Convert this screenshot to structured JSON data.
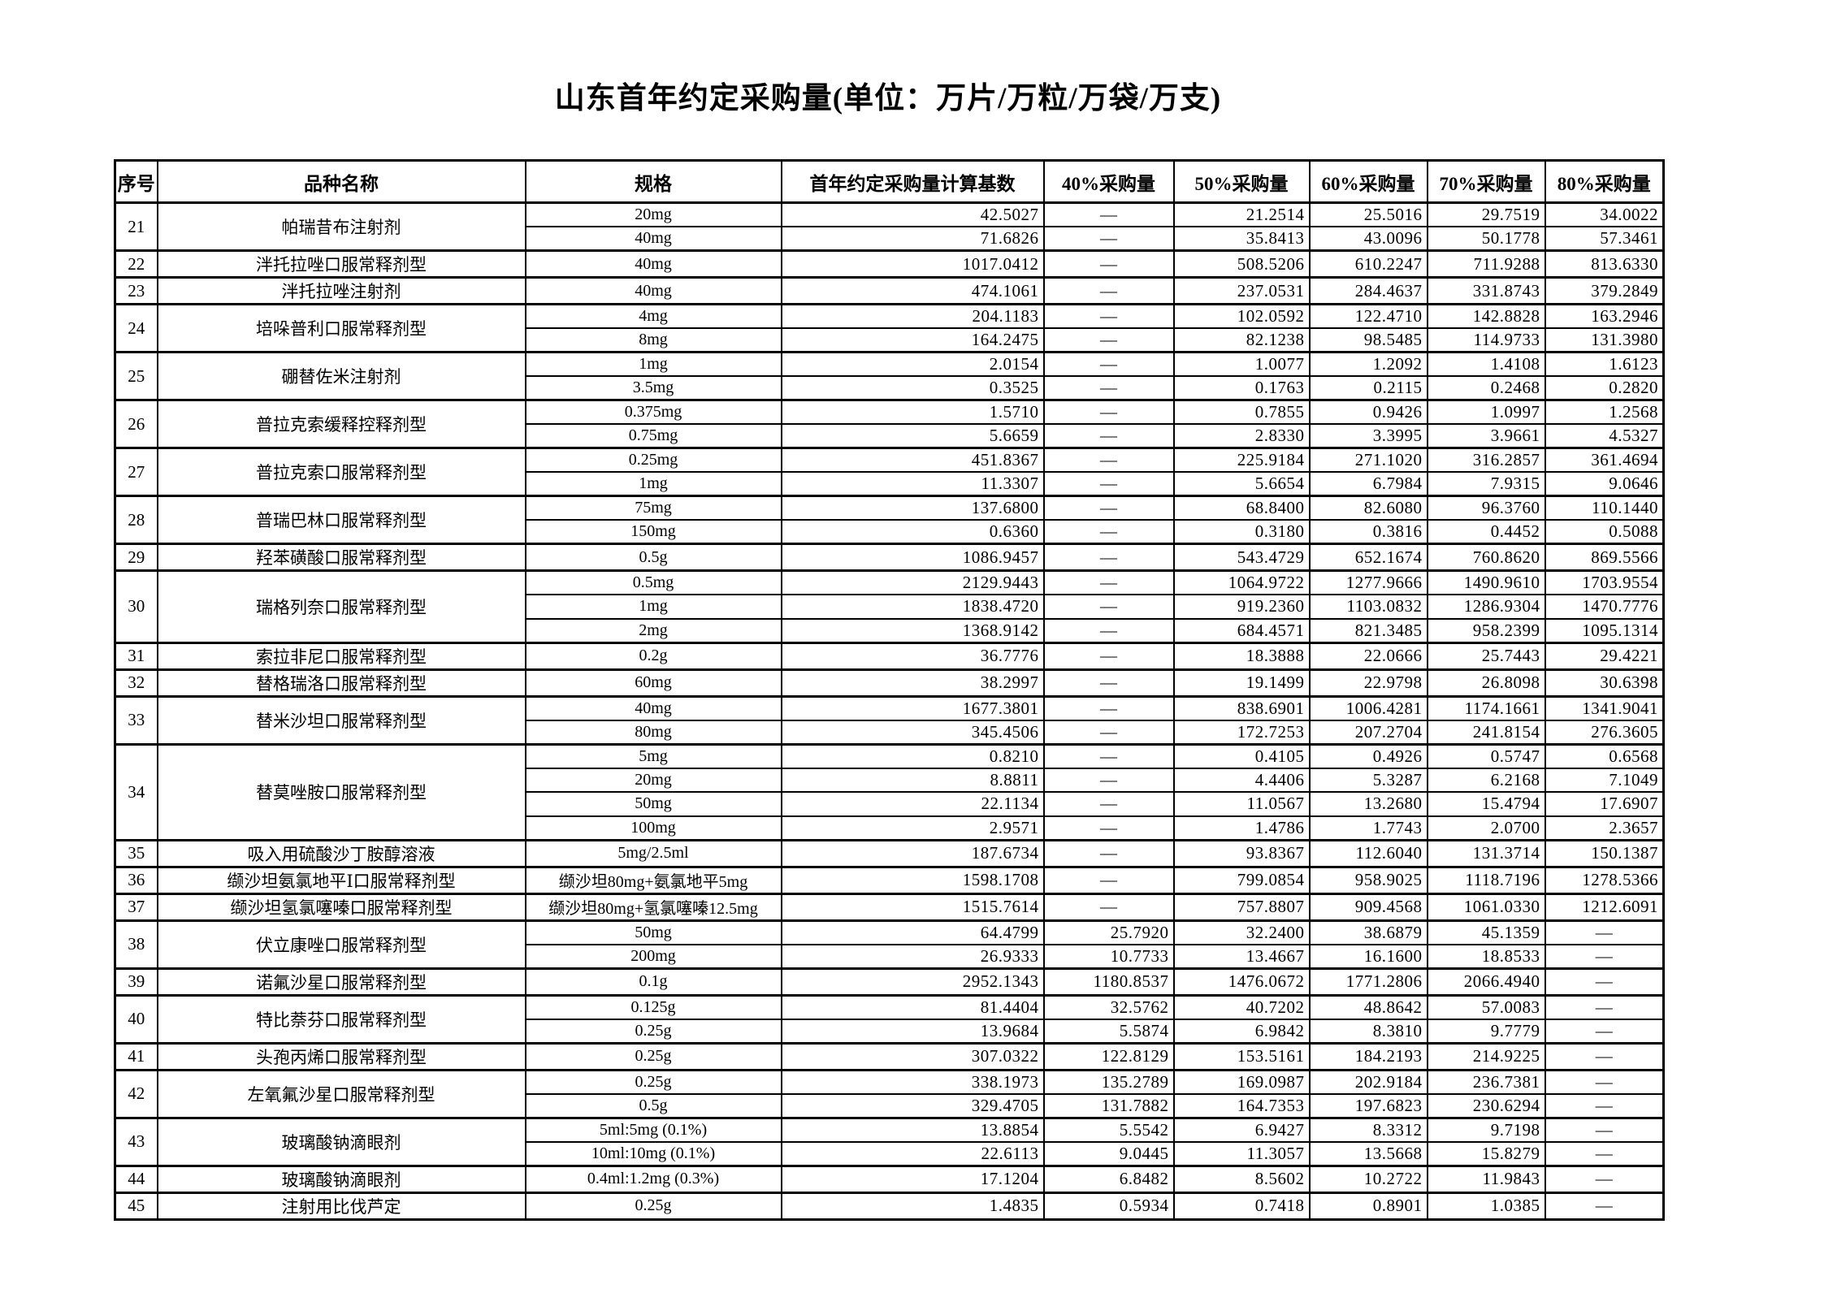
{
  "title": "山东首年约定采购量(单位：万片/万粒/万袋/万支)",
  "table": {
    "headers": [
      "序号",
      "品种名称",
      "规格",
      "首年约定采购量计算基数",
      "40%采购量",
      "50%采购量",
      "60%采购量",
      "70%采购量",
      "80%采购量"
    ],
    "dash_symbol": "—",
    "groups": [
      {
        "no": "21",
        "name": "帕瑞昔布注射剂",
        "rows": [
          {
            "spec": "20mg",
            "base": "42.5027",
            "p40": "—",
            "p50": "21.2514",
            "p60": "25.5016",
            "p70": "29.7519",
            "p80": "34.0022"
          },
          {
            "spec": "40mg",
            "base": "71.6826",
            "p40": "—",
            "p50": "35.8413",
            "p60": "43.0096",
            "p70": "50.1778",
            "p80": "57.3461"
          }
        ]
      },
      {
        "no": "22",
        "name": "泮托拉唑口服常释剂型",
        "rows": [
          {
            "spec": "40mg",
            "base": "1017.0412",
            "p40": "—",
            "p50": "508.5206",
            "p60": "610.2247",
            "p70": "711.9288",
            "p80": "813.6330"
          }
        ]
      },
      {
        "no": "23",
        "name": "泮托拉唑注射剂",
        "rows": [
          {
            "spec": "40mg",
            "base": "474.1061",
            "p40": "—",
            "p50": "237.0531",
            "p60": "284.4637",
            "p70": "331.8743",
            "p80": "379.2849"
          }
        ]
      },
      {
        "no": "24",
        "name": "培哚普利口服常释剂型",
        "rows": [
          {
            "spec": "4mg",
            "base": "204.1183",
            "p40": "—",
            "p50": "102.0592",
            "p60": "122.4710",
            "p70": "142.8828",
            "p80": "163.2946"
          },
          {
            "spec": "8mg",
            "base": "164.2475",
            "p40": "—",
            "p50": "82.1238",
            "p60": "98.5485",
            "p70": "114.9733",
            "p80": "131.3980"
          }
        ]
      },
      {
        "no": "25",
        "name": "硼替佐米注射剂",
        "rows": [
          {
            "spec": "1mg",
            "base": "2.0154",
            "p40": "—",
            "p50": "1.0077",
            "p60": "1.2092",
            "p70": "1.4108",
            "p80": "1.6123"
          },
          {
            "spec": "3.5mg",
            "base": "0.3525",
            "p40": "—",
            "p50": "0.1763",
            "p60": "0.2115",
            "p70": "0.2468",
            "p80": "0.2820"
          }
        ]
      },
      {
        "no": "26",
        "name": "普拉克索缓释控释剂型",
        "rows": [
          {
            "spec": "0.375mg",
            "base": "1.5710",
            "p40": "—",
            "p50": "0.7855",
            "p60": "0.9426",
            "p70": "1.0997",
            "p80": "1.2568"
          },
          {
            "spec": "0.75mg",
            "base": "5.6659",
            "p40": "—",
            "p50": "2.8330",
            "p60": "3.3995",
            "p70": "3.9661",
            "p80": "4.5327"
          }
        ]
      },
      {
        "no": "27",
        "name": "普拉克索口服常释剂型",
        "rows": [
          {
            "spec": "0.25mg",
            "base": "451.8367",
            "p40": "—",
            "p50": "225.9184",
            "p60": "271.1020",
            "p70": "316.2857",
            "p80": "361.4694"
          },
          {
            "spec": "1mg",
            "base": "11.3307",
            "p40": "—",
            "p50": "5.6654",
            "p60": "6.7984",
            "p70": "7.9315",
            "p80": "9.0646"
          }
        ]
      },
      {
        "no": "28",
        "name": "普瑞巴林口服常释剂型",
        "rows": [
          {
            "spec": "75mg",
            "base": "137.6800",
            "p40": "—",
            "p50": "68.8400",
            "p60": "82.6080",
            "p70": "96.3760",
            "p80": "110.1440"
          },
          {
            "spec": "150mg",
            "base": "0.6360",
            "p40": "—",
            "p50": "0.3180",
            "p60": "0.3816",
            "p70": "0.4452",
            "p80": "0.5088"
          }
        ]
      },
      {
        "no": "29",
        "name": "羟苯磺酸口服常释剂型",
        "rows": [
          {
            "spec": "0.5g",
            "base": "1086.9457",
            "p40": "—",
            "p50": "543.4729",
            "p60": "652.1674",
            "p70": "760.8620",
            "p80": "869.5566"
          }
        ]
      },
      {
        "no": "30",
        "name": "瑞格列奈口服常释剂型",
        "rows": [
          {
            "spec": "0.5mg",
            "base": "2129.9443",
            "p40": "—",
            "p50": "1064.9722",
            "p60": "1277.9666",
            "p70": "1490.9610",
            "p80": "1703.9554"
          },
          {
            "spec": "1mg",
            "base": "1838.4720",
            "p40": "—",
            "p50": "919.2360",
            "p60": "1103.0832",
            "p70": "1286.9304",
            "p80": "1470.7776"
          },
          {
            "spec": "2mg",
            "base": "1368.9142",
            "p40": "—",
            "p50": "684.4571",
            "p60": "821.3485",
            "p70": "958.2399",
            "p80": "1095.1314"
          }
        ]
      },
      {
        "no": "31",
        "name": "索拉非尼口服常释剂型",
        "rows": [
          {
            "spec": "0.2g",
            "base": "36.7776",
            "p40": "—",
            "p50": "18.3888",
            "p60": "22.0666",
            "p70": "25.7443",
            "p80": "29.4221"
          }
        ]
      },
      {
        "no": "32",
        "name": "替格瑞洛口服常释剂型",
        "rows": [
          {
            "spec": "60mg",
            "base": "38.2997",
            "p40": "—",
            "p50": "19.1499",
            "p60": "22.9798",
            "p70": "26.8098",
            "p80": "30.6398"
          }
        ]
      },
      {
        "no": "33",
        "name": "替米沙坦口服常释剂型",
        "rows": [
          {
            "spec": "40mg",
            "base": "1677.3801",
            "p40": "—",
            "p50": "838.6901",
            "p60": "1006.4281",
            "p70": "1174.1661",
            "p80": "1341.9041"
          },
          {
            "spec": "80mg",
            "base": "345.4506",
            "p40": "—",
            "p50": "172.7253",
            "p60": "207.2704",
            "p70": "241.8154",
            "p80": "276.3605"
          }
        ]
      },
      {
        "no": "34",
        "name": "替莫唑胺口服常释剂型",
        "rows": [
          {
            "spec": "5mg",
            "base": "0.8210",
            "p40": "—",
            "p50": "0.4105",
            "p60": "0.4926",
            "p70": "0.5747",
            "p80": "0.6568"
          },
          {
            "spec": "20mg",
            "base": "8.8811",
            "p40": "—",
            "p50": "4.4406",
            "p60": "5.3287",
            "p70": "6.2168",
            "p80": "7.1049"
          },
          {
            "spec": "50mg",
            "base": "22.1134",
            "p40": "—",
            "p50": "11.0567",
            "p60": "13.2680",
            "p70": "15.4794",
            "p80": "17.6907"
          },
          {
            "spec": "100mg",
            "base": "2.9571",
            "p40": "—",
            "p50": "1.4786",
            "p60": "1.7743",
            "p70": "2.0700",
            "p80": "2.3657"
          }
        ]
      },
      {
        "no": "35",
        "name": "吸入用硫酸沙丁胺醇溶液",
        "rows": [
          {
            "spec": "5mg/2.5ml",
            "base": "187.6734",
            "p40": "—",
            "p50": "93.8367",
            "p60": "112.6040",
            "p70": "131.3714",
            "p80": "150.1387"
          }
        ]
      },
      {
        "no": "36",
        "name": "缬沙坦氨氯地平Ⅰ口服常释剂型",
        "rows": [
          {
            "spec": "缬沙坦80mg+氨氯地平5mg",
            "base": "1598.1708",
            "p40": "—",
            "p50": "799.0854",
            "p60": "958.9025",
            "p70": "1118.7196",
            "p80": "1278.5366"
          }
        ]
      },
      {
        "no": "37",
        "name": "缬沙坦氢氯噻嗪口服常释剂型",
        "rows": [
          {
            "spec": "缬沙坦80mg+氢氯噻嗪12.5mg",
            "base": "1515.7614",
            "p40": "—",
            "p50": "757.8807",
            "p60": "909.4568",
            "p70": "1061.0330",
            "p80": "1212.6091"
          }
        ]
      },
      {
        "no": "38",
        "name": "伏立康唑口服常释剂型",
        "rows": [
          {
            "spec": "50mg",
            "base": "64.4799",
            "p40": "25.7920",
            "p50": "32.2400",
            "p60": "38.6879",
            "p70": "45.1359",
            "p80": "—"
          },
          {
            "spec": "200mg",
            "base": "26.9333",
            "p40": "10.7733",
            "p50": "13.4667",
            "p60": "16.1600",
            "p70": "18.8533",
            "p80": "—"
          }
        ]
      },
      {
        "no": "39",
        "name": "诺氟沙星口服常释剂型",
        "rows": [
          {
            "spec": "0.1g",
            "base": "2952.1343",
            "p40": "1180.8537",
            "p50": "1476.0672",
            "p60": "1771.2806",
            "p70": "2066.4940",
            "p80": "—"
          }
        ]
      },
      {
        "no": "40",
        "name": "特比萘芬口服常释剂型",
        "rows": [
          {
            "spec": "0.125g",
            "base": "81.4404",
            "p40": "32.5762",
            "p50": "40.7202",
            "p60": "48.8642",
            "p70": "57.0083",
            "p80": "—"
          },
          {
            "spec": "0.25g",
            "base": "13.9684",
            "p40": "5.5874",
            "p50": "6.9842",
            "p60": "8.3810",
            "p70": "9.7779",
            "p80": "—"
          }
        ]
      },
      {
        "no": "41",
        "name": "头孢丙烯口服常释剂型",
        "rows": [
          {
            "spec": "0.25g",
            "base": "307.0322",
            "p40": "122.8129",
            "p50": "153.5161",
            "p60": "184.2193",
            "p70": "214.9225",
            "p80": "—"
          }
        ]
      },
      {
        "no": "42",
        "name": "左氧氟沙星口服常释剂型",
        "rows": [
          {
            "spec": "0.25g",
            "base": "338.1973",
            "p40": "135.2789",
            "p50": "169.0987",
            "p60": "202.9184",
            "p70": "236.7381",
            "p80": "—"
          },
          {
            "spec": "0.5g",
            "base": "329.4705",
            "p40": "131.7882",
            "p50": "164.7353",
            "p60": "197.6823",
            "p70": "230.6294",
            "p80": "—"
          }
        ]
      },
      {
        "no": "43",
        "name": "玻璃酸钠滴眼剂",
        "rows": [
          {
            "spec": "5ml:5mg (0.1%)",
            "base": "13.8854",
            "p40": "5.5542",
            "p50": "6.9427",
            "p60": "8.3312",
            "p70": "9.7198",
            "p80": "—"
          },
          {
            "spec": "10ml:10mg (0.1%)",
            "base": "22.6113",
            "p40": "9.0445",
            "p50": "11.3057",
            "p60": "13.5668",
            "p70": "15.8279",
            "p80": "—"
          }
        ]
      },
      {
        "no": "44",
        "name": "玻璃酸钠滴眼剂",
        "rows": [
          {
            "spec": "0.4ml:1.2mg (0.3%)",
            "base": "17.1204",
            "p40": "6.8482",
            "p50": "8.5602",
            "p60": "10.2722",
            "p70": "11.9843",
            "p80": "—"
          }
        ]
      },
      {
        "no": "45",
        "name": "注射用比伐芦定",
        "rows": [
          {
            "spec": "0.25g",
            "base": "1.4835",
            "p40": "0.5934",
            "p50": "0.7418",
            "p60": "0.8901",
            "p70": "1.0385",
            "p80": "—"
          }
        ]
      }
    ]
  }
}
